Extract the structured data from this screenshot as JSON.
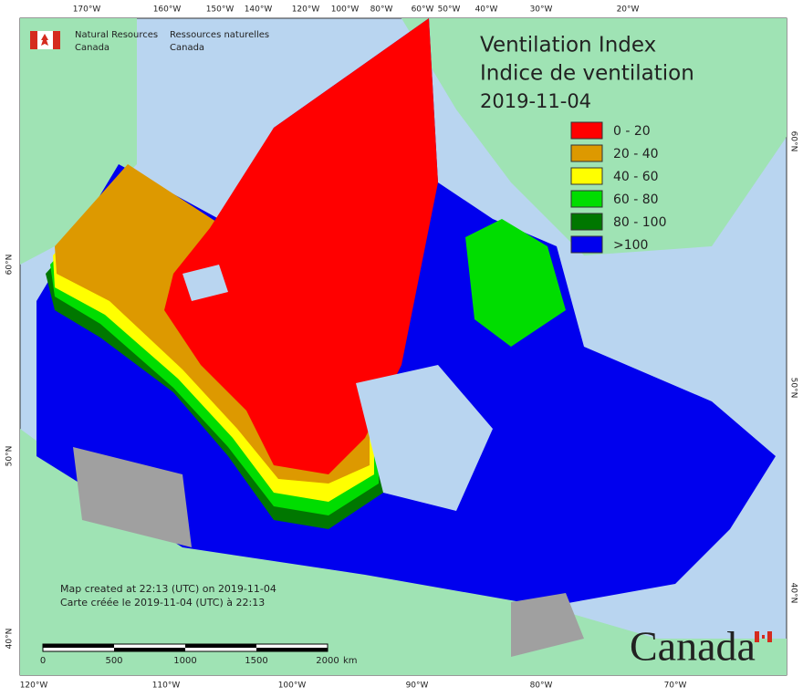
{
  "agency": {
    "en": [
      "Natural Resources",
      "Canada"
    ],
    "fr": [
      "Ressources naturelles",
      "Canada"
    ]
  },
  "title": [
    "Ventilation Index",
    "Indice de ventilation",
    "2019-11-04"
  ],
  "legend": [
    {
      "label": "0 - 20",
      "color": "#ff0000"
    },
    {
      "label": "20 - 40",
      "color": "#dd9900"
    },
    {
      "label": "40 - 60",
      "color": "#ffff00"
    },
    {
      "label": "60 - 80",
      "color": "#00dd00"
    },
    {
      "label": "80 - 100",
      "color": "#007700"
    },
    {
      "label": ">100",
      "color": "#0000ee"
    }
  ],
  "top_longitudes": [
    "170°W",
    "160°W",
    "150°W",
    "140°W",
    "120°W",
    "100°W",
    "80°W",
    "60°W",
    "50°W",
    "40°W",
    "30°W",
    "20°W"
  ],
  "bottom_longitudes": [
    "120°W",
    "110°W",
    "100°W",
    "90°W",
    "80°W",
    "70°W"
  ],
  "left_latitudes": [
    "60°N",
    "50°N",
    "40°N"
  ],
  "right_latitudes": [
    "60°N",
    "50°N",
    "40°N"
  ],
  "notes": [
    "Map created at 22:13 (UTC) on 2019-11-04",
    "Carte créée le 2019-11-04 (UTC) à 22:13"
  ],
  "scale_bar": {
    "labels": [
      "0",
      "500",
      "1000",
      "1500",
      "2000"
    ],
    "unit": "km"
  },
  "wordmark": "Canada"
}
